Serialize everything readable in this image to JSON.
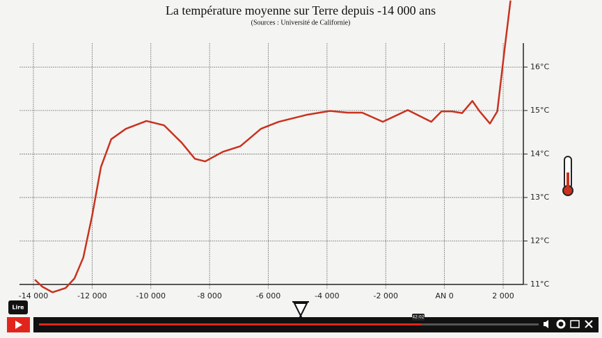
{
  "chart_data": {
    "type": "line",
    "title": "La température moyenne sur Terre depuis -14 000 ans",
    "subtitle": "(Sources : Université de Californie)",
    "x": [
      -13950,
      -13700,
      -13350,
      -12900,
      -12600,
      -12300,
      -12000,
      -11700,
      -11350,
      -10850,
      -10150,
      -9550,
      -8950,
      -8500,
      -8150,
      -7550,
      -6950,
      -6250,
      -5650,
      -4700,
      -3900,
      -3300,
      -2800,
      -2100,
      -1250,
      -450,
      -100,
      250,
      600,
      950,
      1200,
      1550,
      1800,
      2050,
      2250
    ],
    "series": [
      {
        "name": "Température",
        "color": "#c8321e",
        "values": [
          11.11,
          10.95,
          10.82,
          10.92,
          11.14,
          11.62,
          12.58,
          13.7,
          14.34,
          14.58,
          14.76,
          14.66,
          14.26,
          13.89,
          13.83,
          14.05,
          14.18,
          14.58,
          14.74,
          14.9,
          14.99,
          14.95,
          14.95,
          14.74,
          15.01,
          14.74,
          14.98,
          14.98,
          14.94,
          15.22,
          14.98,
          14.7,
          14.98,
          16.42,
          17.53
        ]
      }
    ],
    "xlim": [
      -14000,
      2000
    ],
    "xticks": [
      {
        "value": -14000,
        "label": "-14 000"
      },
      {
        "value": -12000,
        "label": "-12 000"
      },
      {
        "value": -10000,
        "label": "-10 000"
      },
      {
        "value": -8000,
        "label": "-8 000"
      },
      {
        "value": -6000,
        "label": "-6 000"
      },
      {
        "value": -4000,
        "label": "-4 000"
      },
      {
        "value": -2000,
        "label": "-2 000"
      },
      {
        "value": 0,
        "label": "AN 0"
      },
      {
        "value": 2000,
        "label": "2 000"
      }
    ],
    "ylim": [
      11,
      16.55
    ],
    "yticks": [
      {
        "value": 11,
        "label": "11°C"
      },
      {
        "value": 12,
        "label": "12°C"
      },
      {
        "value": 13,
        "label": "13°C"
      },
      {
        "value": 14,
        "label": "14°C"
      },
      {
        "value": 15,
        "label": "15°C"
      },
      {
        "value": 16,
        "label": "16°C"
      }
    ],
    "grid": true
  },
  "player": {
    "tooltip": "Lire",
    "time": "42:02"
  }
}
